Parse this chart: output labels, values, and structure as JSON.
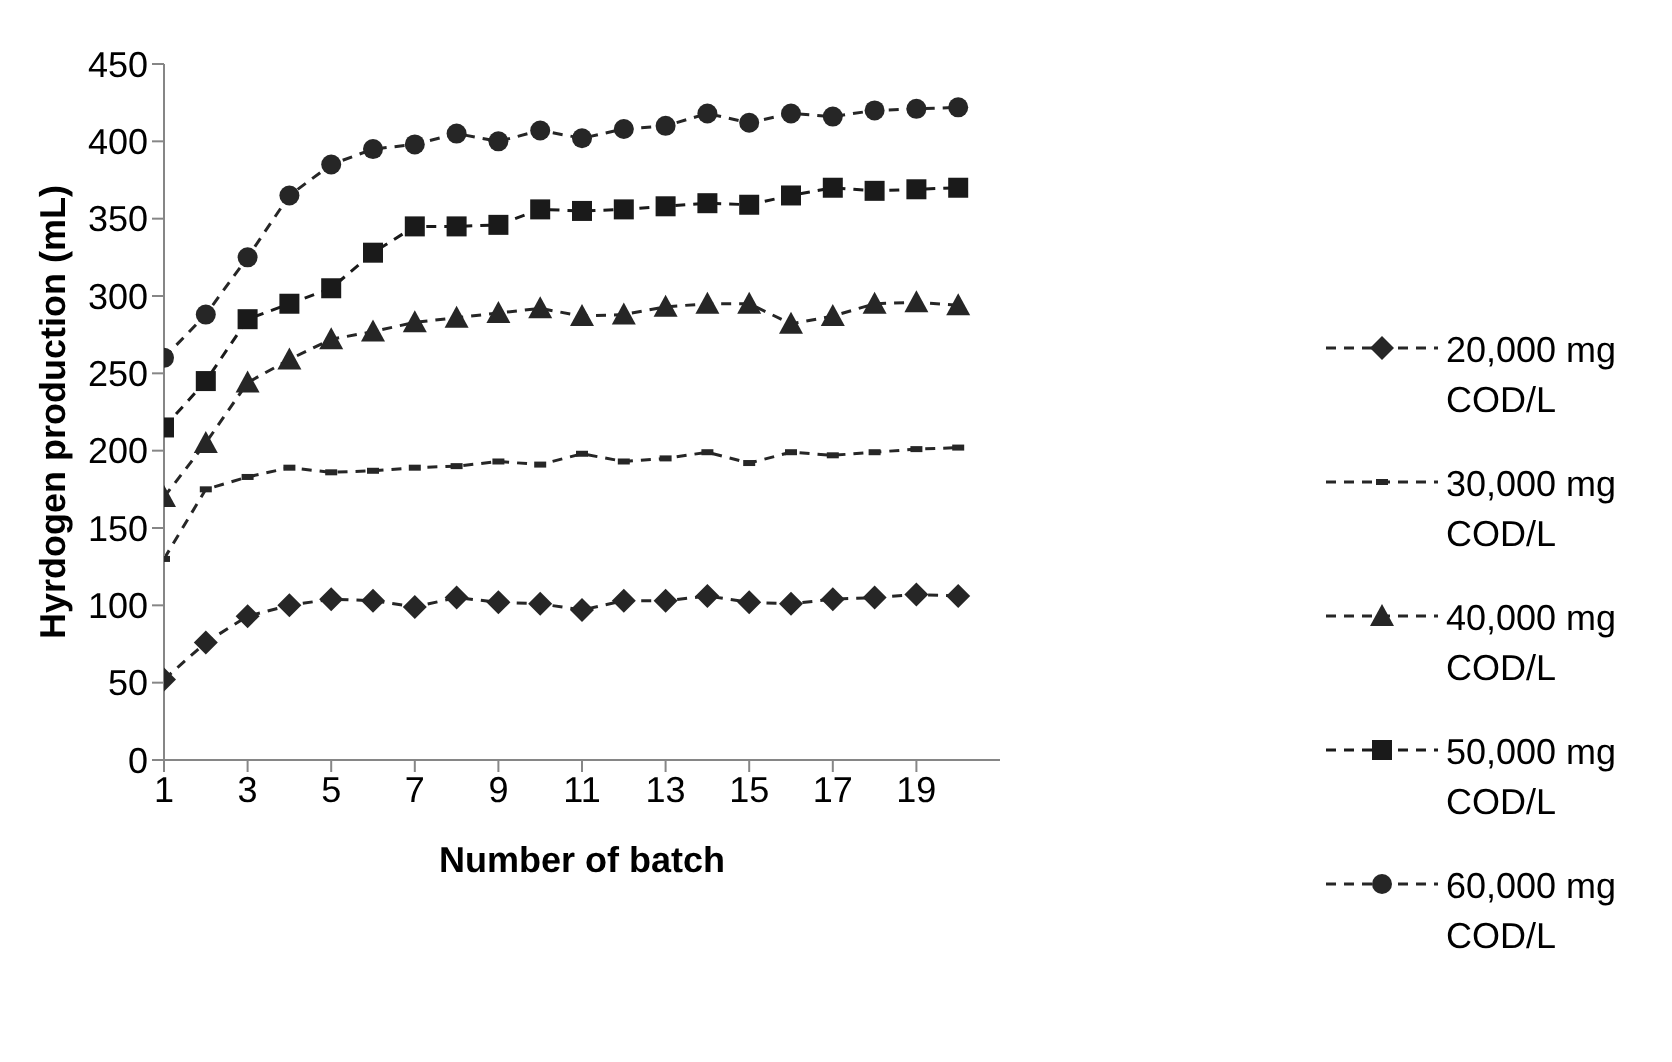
{
  "chart_data": {
    "type": "line",
    "xlabel": "Number of batch",
    "ylabel": "Hyrdogen production (mL)",
    "x": [
      1,
      2,
      3,
      4,
      5,
      6,
      7,
      8,
      9,
      10,
      11,
      12,
      13,
      14,
      15,
      16,
      17,
      18,
      19,
      20
    ],
    "xlim": [
      1,
      21
    ],
    "xticks": [
      1,
      3,
      5,
      7,
      9,
      11,
      13,
      15,
      17,
      19
    ],
    "ylim": [
      0,
      450
    ],
    "yticks": [
      0,
      50,
      100,
      150,
      200,
      250,
      300,
      350,
      400,
      450
    ],
    "grid": false,
    "legend": "right",
    "line_style": "dashed",
    "series": [
      {
        "name": "20,000 mg COD/L",
        "color": "#262626",
        "marker": "diamond",
        "values": [
          52,
          76,
          93,
          100,
          104,
          103,
          99,
          105,
          102,
          101,
          97,
          103,
          103,
          106,
          102,
          101,
          104,
          105,
          107,
          106
        ]
      },
      {
        "name": "30,000 mg COD/L",
        "color": "#262626",
        "marker": "square",
        "values": [
          130,
          175,
          183,
          189,
          186,
          187,
          189,
          190,
          193,
          191,
          198,
          193,
          195,
          199,
          192,
          199,
          197,
          199,
          201,
          202
        ]
      },
      {
        "name": "40,000 mg COD/L",
        "color": "#262626",
        "marker": "triangle",
        "values": [
          170,
          205,
          244,
          259,
          272,
          277,
          283,
          286,
          289,
          292,
          287,
          288,
          293,
          295,
          295,
          282,
          287,
          295,
          296,
          294
        ]
      },
      {
        "name": "50,000 mg COD/L",
        "color": "#1a1a1a",
        "marker": "square",
        "values": [
          215,
          245,
          285,
          295,
          305,
          328,
          345,
          345,
          346,
          356,
          355,
          356,
          358,
          360,
          359,
          365,
          370,
          368,
          369,
          370
        ]
      },
      {
        "name": "60,000 mg COD/L",
        "color": "#262626",
        "marker": "circle",
        "values": [
          260,
          288,
          325,
          365,
          385,
          395,
          398,
          405,
          400,
          407,
          402,
          408,
          410,
          418,
          412,
          418,
          416,
          420,
          421,
          422
        ]
      }
    ]
  }
}
